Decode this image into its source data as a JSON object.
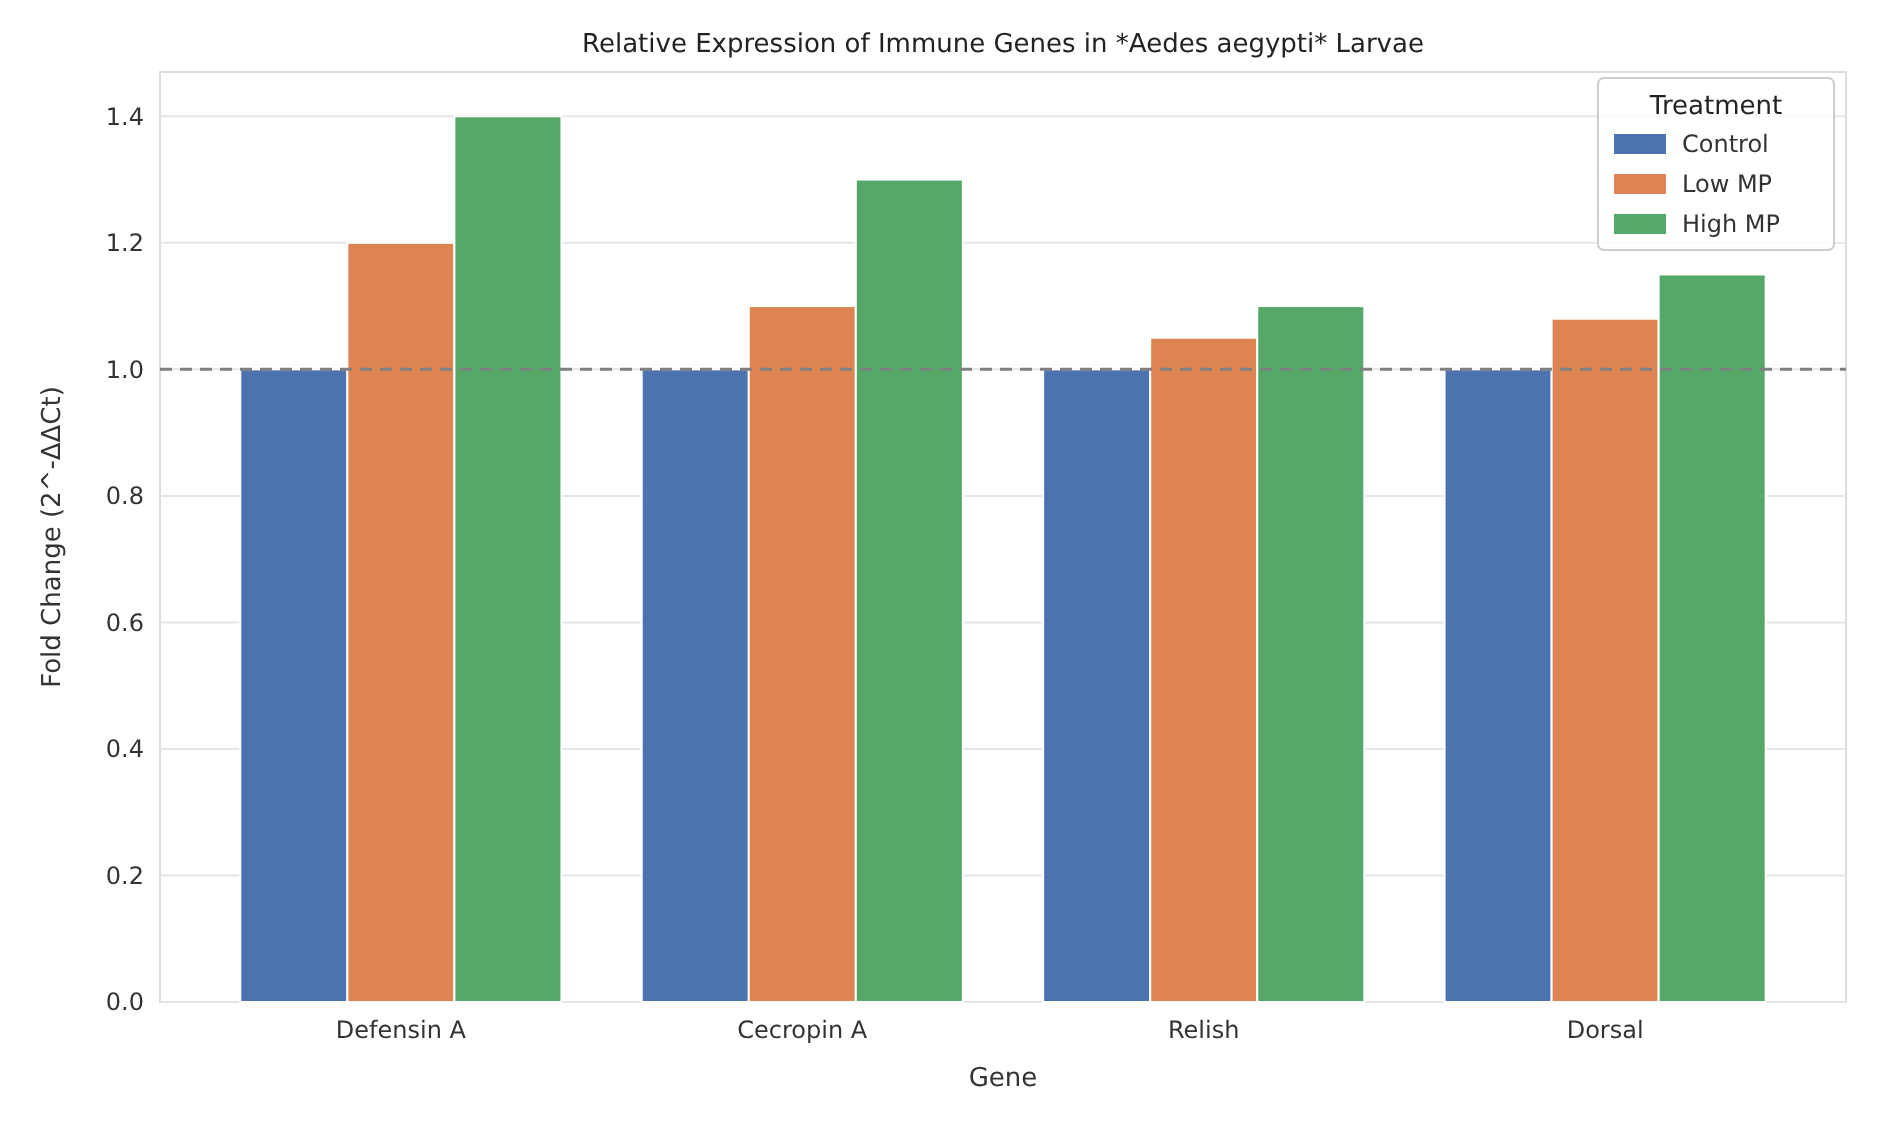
{
  "chart_data": {
    "type": "bar",
    "title": "Relative Expression of Immune Genes in *Aedes aegypti* Larvae",
    "xlabel": "Gene",
    "ylabel": "Fold Change (2^-ΔΔCt)",
    "legend_title": "Treatment",
    "categories": [
      "Defensin A",
      "Cecropin A",
      "Relish",
      "Dorsal"
    ],
    "series": [
      {
        "name": "Control",
        "color": "#4c72b0",
        "values": [
          1.0,
          1.0,
          1.0,
          1.0
        ]
      },
      {
        "name": "Low MP",
        "color": "#dd8452",
        "values": [
          1.2,
          1.1,
          1.05,
          1.08
        ]
      },
      {
        "name": "High MP",
        "color": "#55a868",
        "values": [
          1.4,
          1.3,
          1.1,
          1.15
        ]
      }
    ],
    "ylim": [
      0,
      1.47
    ],
    "yticks": [
      {
        "value": 0,
        "label": "0.0"
      },
      0.2,
      0.4,
      0.6,
      0.8,
      {
        "value": 1,
        "label": "1.0"
      },
      1.2,
      1.4
    ],
    "grid": "y",
    "legend": "top right",
    "ref_lines": [
      {
        "axis": "y",
        "value": 1.0,
        "color": "#808080",
        "line_style": "dashed"
      }
    ]
  }
}
